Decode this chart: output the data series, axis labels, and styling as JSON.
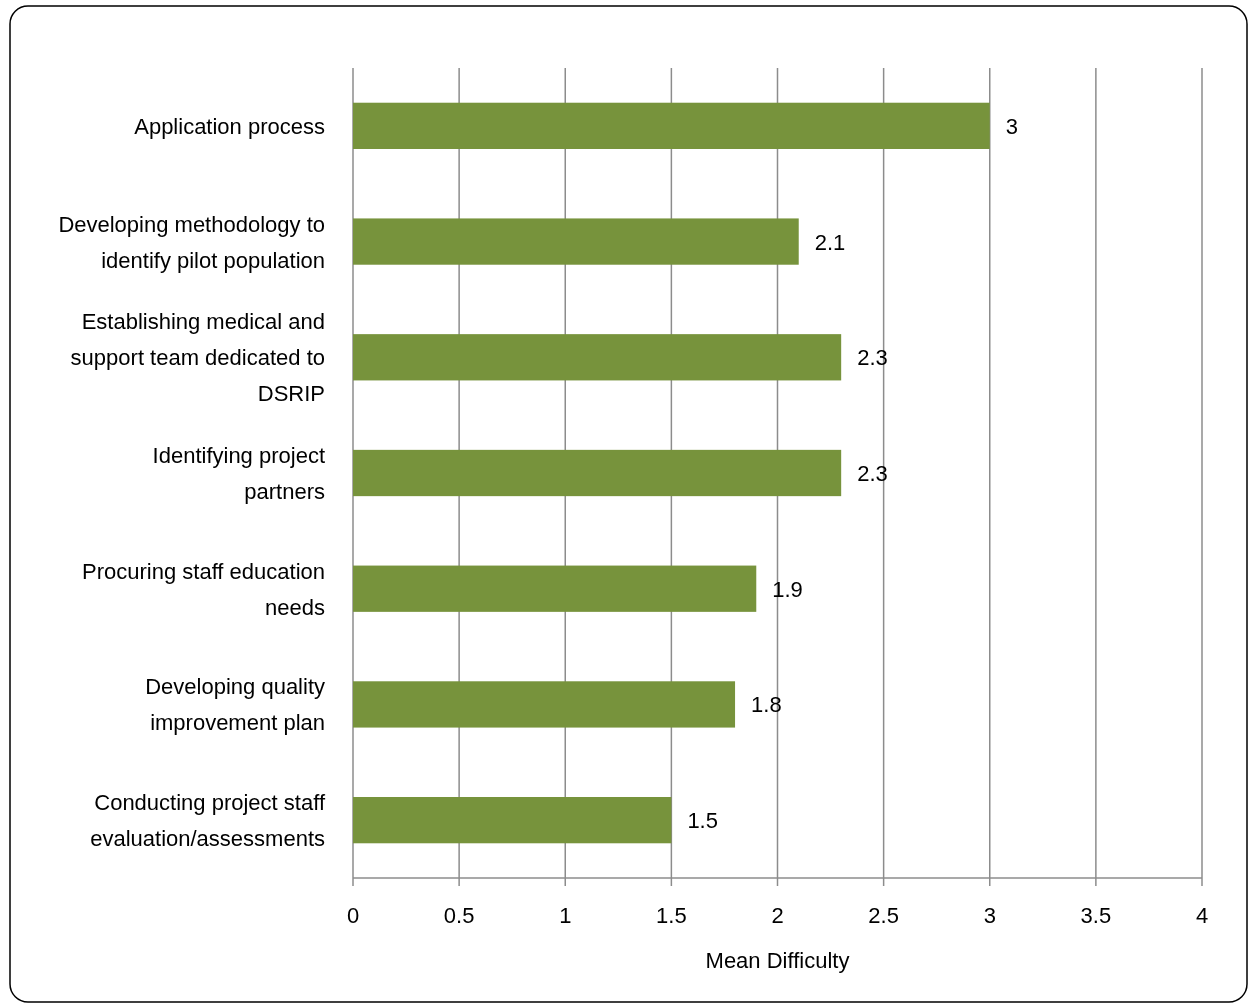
{
  "chart_data": {
    "type": "bar",
    "orientation": "horizontal",
    "xlabel": "Mean Difficulty",
    "categories": [
      "Application process",
      "Developing methodology to identify pilot population",
      "Establishing medical and support team dedicated to DSRIP",
      "Identifying project partners",
      "Procuring staff education needs",
      "Developing quality improvement plan",
      "Conducting project staff evaluation/assessments"
    ],
    "values": [
      3,
      2.1,
      2.3,
      2.3,
      1.9,
      1.8,
      1.5
    ],
    "color": "#77933c",
    "xlim": [
      0,
      4
    ],
    "xticks": [
      0,
      0.5,
      1,
      1.5,
      2,
      2.5,
      3,
      3.5,
      4
    ],
    "grid": "x",
    "data_labels": true
  }
}
